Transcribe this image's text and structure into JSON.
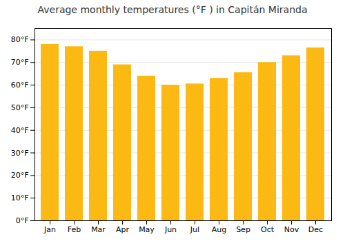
{
  "chart_data": {
    "type": "bar",
    "title": "Average monthly temperatures (°F ) in Capitán Miranda",
    "categories": [
      "Jan",
      "Feb",
      "Mar",
      "Apr",
      "May",
      "Jun",
      "Jul",
      "Aug",
      "Sep",
      "Oct",
      "Nov",
      "Dec"
    ],
    "values": [
      78,
      77,
      75,
      69,
      64,
      60,
      60.5,
      63,
      65.5,
      70,
      73,
      76.5
    ],
    "color": "#FDB913",
    "ylim": [
      0,
      85
    ],
    "yticks": [
      {
        "value": 0,
        "label": "0°F"
      },
      {
        "value": 10,
        "label": "10°F"
      },
      {
        "value": 20,
        "label": "20°F"
      },
      {
        "value": 30,
        "label": "30°F"
      },
      {
        "value": 40,
        "label": "40°F"
      },
      {
        "value": 50,
        "label": "50°F"
      },
      {
        "value": 60,
        "label": "60°F"
      },
      {
        "value": 70,
        "label": "70°F"
      },
      {
        "value": 80,
        "label": "80°F"
      }
    ],
    "grid": true
  }
}
